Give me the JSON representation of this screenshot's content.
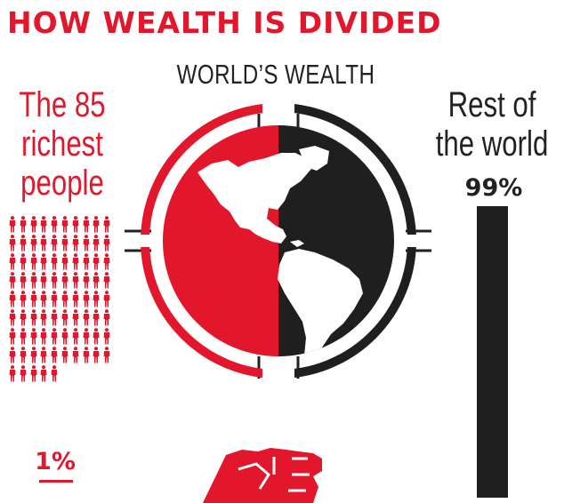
{
  "title": "HOW WEALTH IS DIVIDED",
  "center_label": "WORLD’S WEALTH",
  "left_group": {
    "label_lines": [
      "The 85",
      "richest",
      "people"
    ],
    "percent": "1%",
    "people_count": 85,
    "people_per_row": 10,
    "color": "#e3172c"
  },
  "right_group": {
    "label_lines": [
      "Rest of",
      "the world"
    ],
    "percent": "99%",
    "color": "#1f1f1f"
  },
  "icons": {
    "globe": "globe-half-split-icon",
    "person": "person-icon",
    "fist": "raised-fist-icon"
  }
}
